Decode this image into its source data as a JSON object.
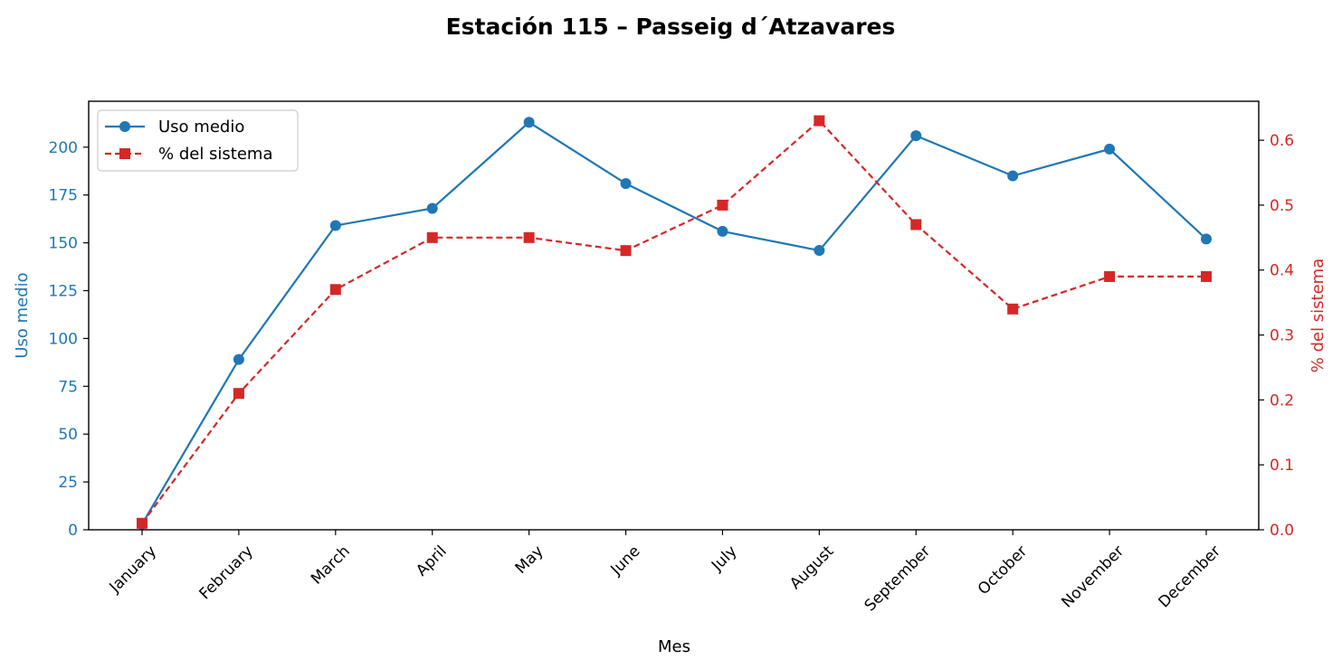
{
  "chart_data": {
    "type": "line",
    "title": "Estación 115 – Passeig d´Atzavares",
    "xlabel": "Mes",
    "categories": [
      "January",
      "February",
      "March",
      "April",
      "May",
      "June",
      "July",
      "August",
      "September",
      "October",
      "November",
      "December"
    ],
    "series": [
      {
        "name": "Uso medio",
        "axis": "left",
        "color": "#1f77b4",
        "marker": "circle",
        "linestyle": "solid",
        "values": [
          3,
          89,
          159,
          168,
          213,
          181,
          156,
          146,
          206,
          185,
          199,
          152
        ]
      },
      {
        "name": "% del sistema",
        "axis": "right",
        "color": "#d62728",
        "marker": "square",
        "linestyle": "dashed",
        "values": [
          0.01,
          0.21,
          0.37,
          0.45,
          0.45,
          0.43,
          0.5,
          0.63,
          0.47,
          0.34,
          0.39,
          0.39
        ]
      }
    ],
    "y_left": {
      "label": "Uso medio",
      "color": "#1f77b4",
      "ylim": [
        0,
        224
      ],
      "ticks": [
        0,
        25,
        50,
        75,
        100,
        125,
        150,
        175,
        200
      ]
    },
    "y_right": {
      "label": "% del sistema",
      "color": "#d62728",
      "ylim": [
        0,
        0.66
      ],
      "ticks": [
        "0.0",
        "0.1",
        "0.2",
        "0.3",
        "0.4",
        "0.5",
        "0.6"
      ]
    },
    "grid": false,
    "legend_position": "upper-left"
  }
}
